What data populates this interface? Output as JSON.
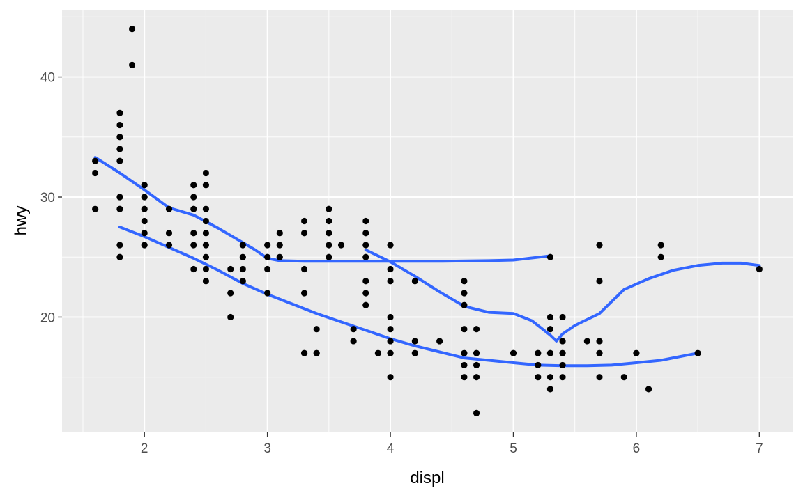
{
  "chart_data": {
    "type": "scatter",
    "xlabel": "displ",
    "ylabel": "hwy",
    "xlim": [
      1.33,
      7.27
    ],
    "ylim": [
      10.4,
      45.6
    ],
    "x_ticks": [
      2,
      3,
      4,
      5,
      6,
      7
    ],
    "y_ticks": [
      20,
      30,
      40
    ],
    "grid": true,
    "legend": "none",
    "colors": {
      "points": "#000000",
      "smooth": "#3366ff",
      "panel": "#ebebeb",
      "grid": "#ffffff"
    },
    "points": [
      [
        1.6,
        33
      ],
      [
        1.6,
        32
      ],
      [
        1.6,
        29
      ],
      [
        1.8,
        37
      ],
      [
        1.8,
        36
      ],
      [
        1.8,
        35
      ],
      [
        1.8,
        34
      ],
      [
        1.8,
        33
      ],
      [
        1.8,
        30
      ],
      [
        1.8,
        29
      ],
      [
        1.8,
        26
      ],
      [
        1.8,
        25
      ],
      [
        1.9,
        44
      ],
      [
        1.9,
        41
      ],
      [
        2.0,
        31
      ],
      [
        2.0,
        30
      ],
      [
        2.0,
        29
      ],
      [
        2.0,
        28
      ],
      [
        2.0,
        27
      ],
      [
        2.0,
        26
      ],
      [
        2.2,
        29
      ],
      [
        2.2,
        27
      ],
      [
        2.2,
        26
      ],
      [
        2.4,
        31
      ],
      [
        2.4,
        30
      ],
      [
        2.4,
        29
      ],
      [
        2.4,
        27
      ],
      [
        2.4,
        26
      ],
      [
        2.4,
        24
      ],
      [
        2.5,
        32
      ],
      [
        2.5,
        31
      ],
      [
        2.5,
        29
      ],
      [
        2.5,
        28
      ],
      [
        2.5,
        27
      ],
      [
        2.5,
        26
      ],
      [
        2.5,
        25
      ],
      [
        2.5,
        24
      ],
      [
        2.5,
        23
      ],
      [
        2.7,
        24
      ],
      [
        2.7,
        22
      ],
      [
        2.7,
        20
      ],
      [
        2.8,
        26
      ],
      [
        2.8,
        25
      ],
      [
        2.8,
        24
      ],
      [
        2.8,
        23
      ],
      [
        3.0,
        26
      ],
      [
        3.0,
        25
      ],
      [
        3.0,
        24
      ],
      [
        3.0,
        22
      ],
      [
        3.1,
        27
      ],
      [
        3.1,
        26
      ],
      [
        3.1,
        25
      ],
      [
        3.3,
        28
      ],
      [
        3.3,
        27
      ],
      [
        3.3,
        24
      ],
      [
        3.3,
        22
      ],
      [
        3.3,
        17
      ],
      [
        3.4,
        19
      ],
      [
        3.4,
        17
      ],
      [
        3.5,
        29
      ],
      [
        3.5,
        28
      ],
      [
        3.5,
        27
      ],
      [
        3.5,
        26
      ],
      [
        3.5,
        25
      ],
      [
        3.6,
        26
      ],
      [
        3.7,
        19
      ],
      [
        3.7,
        18
      ],
      [
        3.8,
        28
      ],
      [
        3.8,
        27
      ],
      [
        3.8,
        26
      ],
      [
        3.8,
        25
      ],
      [
        3.8,
        23
      ],
      [
        3.8,
        22
      ],
      [
        3.8,
        21
      ],
      [
        3.9,
        17
      ],
      [
        4.0,
        26
      ],
      [
        4.0,
        24
      ],
      [
        4.0,
        23
      ],
      [
        4.0,
        20
      ],
      [
        4.0,
        19
      ],
      [
        4.0,
        18
      ],
      [
        4.0,
        17
      ],
      [
        4.0,
        15
      ],
      [
        4.2,
        23
      ],
      [
        4.2,
        18
      ],
      [
        4.2,
        17
      ],
      [
        4.4,
        18
      ],
      [
        4.6,
        23
      ],
      [
        4.6,
        22
      ],
      [
        4.6,
        21
      ],
      [
        4.6,
        19
      ],
      [
        4.6,
        17
      ],
      [
        4.6,
        16
      ],
      [
        4.6,
        15
      ],
      [
        4.7,
        19
      ],
      [
        4.7,
        17
      ],
      [
        4.7,
        16
      ],
      [
        4.7,
        15
      ],
      [
        4.7,
        12
      ],
      [
        5.0,
        17
      ],
      [
        5.2,
        17
      ],
      [
        5.2,
        16
      ],
      [
        5.2,
        15
      ],
      [
        5.3,
        25
      ],
      [
        5.3,
        20
      ],
      [
        5.3,
        19
      ],
      [
        5.3,
        17
      ],
      [
        5.3,
        15
      ],
      [
        5.3,
        14
      ],
      [
        5.4,
        20
      ],
      [
        5.4,
        18
      ],
      [
        5.4,
        17
      ],
      [
        5.4,
        16
      ],
      [
        5.4,
        15
      ],
      [
        5.6,
        18
      ],
      [
        5.7,
        26
      ],
      [
        5.7,
        23
      ],
      [
        5.7,
        18
      ],
      [
        5.7,
        17
      ],
      [
        5.7,
        15
      ],
      [
        5.9,
        15
      ],
      [
        6.0,
        17
      ],
      [
        6.1,
        14
      ],
      [
        6.2,
        26
      ],
      [
        6.2,
        25
      ],
      [
        6.5,
        17
      ],
      [
        7.0,
        24
      ]
    ],
    "series": [
      {
        "values": [
          [
            1.8,
            27.5
          ],
          [
            2.0,
            26.7
          ],
          [
            2.2,
            25.8
          ],
          [
            2.4,
            24.9
          ],
          [
            2.6,
            23.9
          ],
          [
            2.8,
            22.8
          ],
          [
            3.0,
            21.9
          ],
          [
            3.2,
            21.1
          ],
          [
            3.4,
            20.3
          ],
          [
            3.6,
            19.6
          ],
          [
            3.8,
            18.9
          ],
          [
            4.0,
            18.2
          ],
          [
            4.2,
            17.6
          ],
          [
            4.4,
            17.1
          ],
          [
            4.6,
            16.6
          ],
          [
            4.8,
            16.4
          ],
          [
            5.0,
            16.2
          ],
          [
            5.2,
            16.0
          ],
          [
            5.4,
            15.95
          ],
          [
            5.6,
            15.95
          ],
          [
            5.8,
            16.0
          ],
          [
            6.0,
            16.2
          ],
          [
            6.2,
            16.4
          ],
          [
            6.5,
            17.0
          ]
        ]
      },
      {
        "values": [
          [
            1.6,
            33.3
          ],
          [
            1.8,
            32.0
          ],
          [
            2.0,
            30.6
          ],
          [
            2.2,
            29.1
          ],
          [
            2.4,
            28.5
          ],
          [
            2.6,
            27.4
          ],
          [
            2.8,
            26.2
          ],
          [
            2.9,
            25.6
          ],
          [
            3.0,
            24.9
          ],
          [
            3.1,
            24.7
          ],
          [
            3.3,
            24.65
          ],
          [
            3.6,
            24.65
          ],
          [
            4.0,
            24.65
          ],
          [
            4.4,
            24.65
          ],
          [
            4.8,
            24.7
          ],
          [
            5.0,
            24.75
          ],
          [
            5.3,
            25.1
          ]
        ]
      },
      {
        "values": [
          [
            3.8,
            25.6
          ],
          [
            4.0,
            24.6
          ],
          [
            4.2,
            23.4
          ],
          [
            4.4,
            22.1
          ],
          [
            4.6,
            20.9
          ],
          [
            4.8,
            20.4
          ],
          [
            5.0,
            20.3
          ],
          [
            5.15,
            19.7
          ],
          [
            5.3,
            18.5
          ],
          [
            5.35,
            18.0
          ],
          [
            5.4,
            18.6
          ],
          [
            5.5,
            19.3
          ],
          [
            5.7,
            20.3
          ],
          [
            5.9,
            22.3
          ],
          [
            6.1,
            23.2
          ],
          [
            6.3,
            23.9
          ],
          [
            6.5,
            24.3
          ],
          [
            6.7,
            24.5
          ],
          [
            6.85,
            24.5
          ],
          [
            7.0,
            24.3
          ]
        ]
      }
    ]
  }
}
